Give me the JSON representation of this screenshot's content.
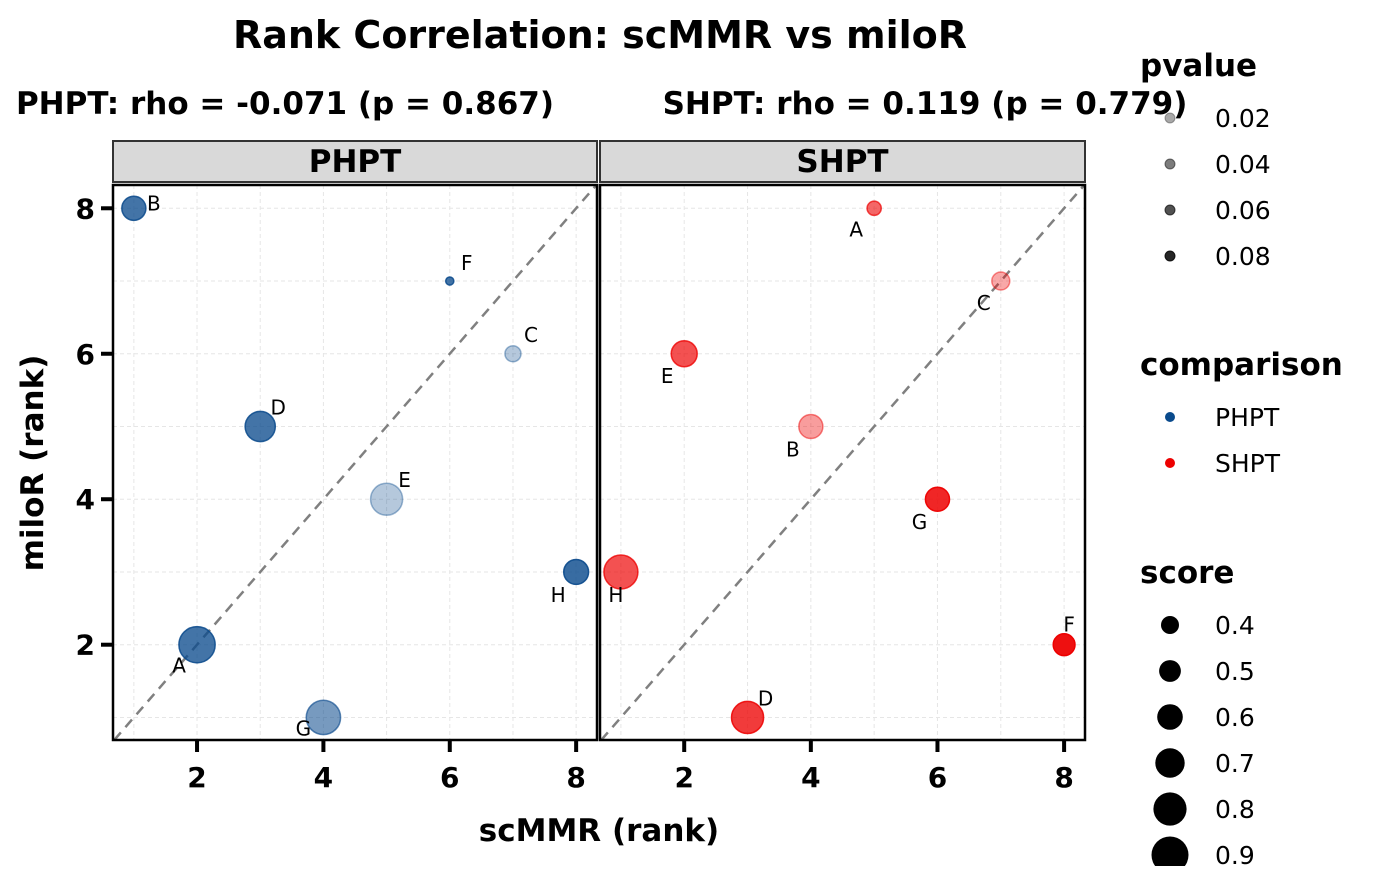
{
  "chart_data": {
    "type": "scatter",
    "title": "Rank Correlation: scMMR vs miloR",
    "xlabel": "scMMR (rank)",
    "ylabel": "miloR (rank)",
    "xlim": [
      0.67,
      8.33
    ],
    "ylim": [
      0.69,
      8.32
    ],
    "xticks": [
      2,
      4,
      6,
      8
    ],
    "yticks": [
      2,
      4,
      6,
      8
    ],
    "grid": true,
    "reference_line": "y = x (dashed)",
    "panels": [
      {
        "name": "PHPT",
        "subtitle": "PHPT: rho = -0.071 (p = 0.867)",
        "color": "#0A4A8C",
        "points": [
          {
            "label": "A",
            "x": 2,
            "y": 2,
            "score": 0.88,
            "pvalue": 0.07
          },
          {
            "label": "B",
            "x": 1,
            "y": 8,
            "score": 0.56,
            "pvalue": 0.07
          },
          {
            "label": "C",
            "x": 7,
            "y": 6,
            "score": 0.35,
            "pvalue": 0.015
          },
          {
            "label": "D",
            "x": 3,
            "y": 5,
            "score": 0.72,
            "pvalue": 0.07
          },
          {
            "label": "E",
            "x": 5,
            "y": 4,
            "score": 0.77,
            "pvalue": 0.015
          },
          {
            "label": "F",
            "x": 6,
            "y": 7,
            "score": 0.14,
            "pvalue": 0.07
          },
          {
            "label": "G",
            "x": 4,
            "y": 1,
            "score": 0.83,
            "pvalue": 0.045
          },
          {
            "label": "H",
            "x": 8,
            "y": 3,
            "score": 0.58,
            "pvalue": 0.075
          }
        ]
      },
      {
        "name": "SHPT",
        "subtitle": "SHPT: rho = 0.119 (p = 0.779)",
        "color": "#ED0000",
        "points": [
          {
            "label": "A",
            "x": 5,
            "y": 8,
            "score": 0.3,
            "pvalue": 0.05
          },
          {
            "label": "B",
            "x": 4,
            "y": 5,
            "score": 0.56,
            "pvalue": 0.025
          },
          {
            "label": "C",
            "x": 7,
            "y": 7,
            "score": 0.4,
            "pvalue": 0.02
          },
          {
            "label": "D",
            "x": 3,
            "y": 1,
            "score": 0.77,
            "pvalue": 0.07
          },
          {
            "label": "E",
            "x": 2,
            "y": 6,
            "score": 0.61,
            "pvalue": 0.06
          },
          {
            "label": "F",
            "x": 8,
            "y": 2,
            "score": 0.5,
            "pvalue": 0.09
          },
          {
            "label": "G",
            "x": 6,
            "y": 4,
            "score": 0.56,
            "pvalue": 0.08
          },
          {
            "label": "H",
            "x": 1,
            "y": 3,
            "score": 0.82,
            "pvalue": 0.06
          }
        ]
      }
    ],
    "legends": {
      "pvalue": {
        "title": "pvalue",
        "items": [
          "0.02",
          "0.04",
          "0.06",
          "0.08"
        ]
      },
      "comparison": {
        "title": "comparison",
        "items": [
          {
            "label": "PHPT",
            "color": "#0A4A8C"
          },
          {
            "label": "SHPT",
            "color": "#ED0000"
          }
        ]
      },
      "score": {
        "title": "score",
        "items": [
          "0.4",
          "0.5",
          "0.6",
          "0.7",
          "0.8",
          "0.9"
        ]
      }
    }
  }
}
